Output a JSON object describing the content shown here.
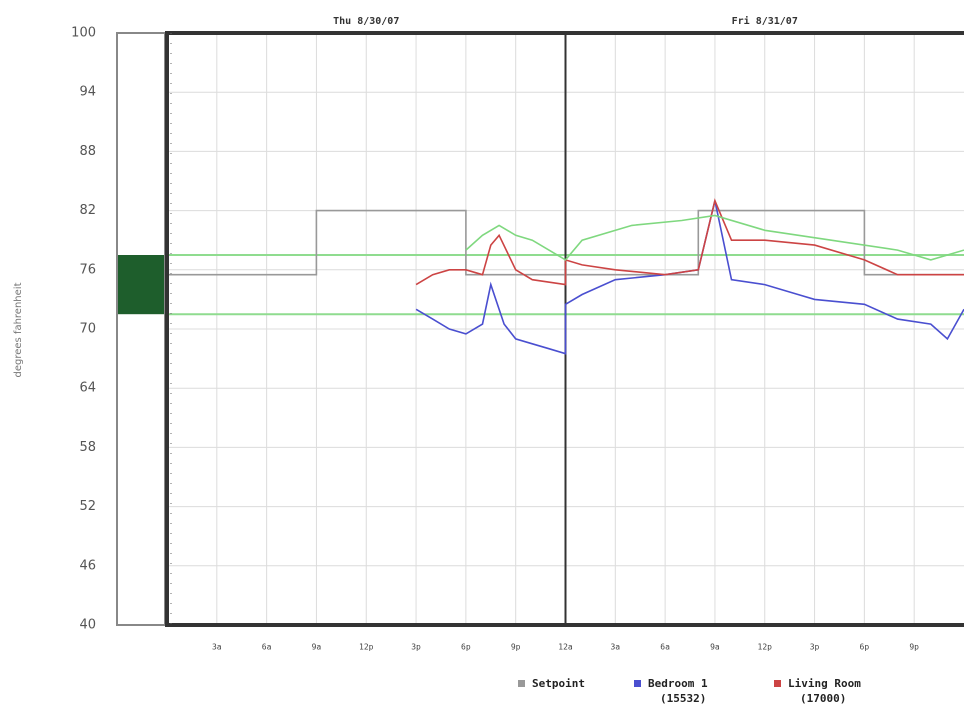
{
  "chart_data": {
    "type": "line",
    "ylabel": "degrees fahrenheit",
    "days": [
      "Thu 8/30/07",
      "Fri 8/31/07"
    ],
    "day_length": 24,
    "xlim": [
      0,
      48
    ],
    "xticks": [
      {
        "value": 3,
        "label": "3a"
      },
      {
        "value": 6,
        "label": "6a"
      },
      {
        "value": 9,
        "label": "9a"
      },
      {
        "value": 12,
        "label": "12p"
      },
      {
        "value": 15,
        "label": "3p"
      },
      {
        "value": 18,
        "label": "6p"
      },
      {
        "value": 21,
        "label": "9p"
      },
      {
        "value": 24,
        "label": "12a"
      },
      {
        "value": 27,
        "label": "3a"
      },
      {
        "value": 30,
        "label": "6a"
      },
      {
        "value": 33,
        "label": "9a"
      },
      {
        "value": 36,
        "label": "12p"
      },
      {
        "value": 39,
        "label": "3p"
      },
      {
        "value": 42,
        "label": "6p"
      },
      {
        "value": 45,
        "label": "9p"
      }
    ],
    "ylim": [
      40,
      100
    ],
    "yticks": [
      40,
      46,
      52,
      58,
      64,
      70,
      76,
      82,
      88,
      94,
      100
    ],
    "grid": true,
    "comfort_band": [
      71.5,
      77.5
    ],
    "band_color": "#1e5e2c",
    "band_line_color": "#8fdc8f",
    "legend": "bottom-right",
    "series": [
      {
        "name": "Setpoint",
        "color": "#999999",
        "x": [
          0,
          9,
          9,
          18,
          18,
          32,
          32,
          42,
          42,
          48
        ],
        "values": [
          75.5,
          75.5,
          82,
          82,
          75.5,
          75.5,
          82,
          82,
          75.5,
          75.5
        ]
      },
      {
        "name": "Bedroom 1",
        "sublabel": "(15532)",
        "color": "#4a4fd0",
        "x": [
          15,
          16,
          17,
          18,
          19,
          19.5,
          20.3,
          21,
          22,
          23,
          24,
          24,
          25,
          27,
          30,
          32,
          33,
          34,
          36,
          38,
          39,
          42,
          44,
          46,
          47,
          48
        ],
        "values": [
          72,
          71,
          70,
          69.5,
          70.5,
          74.5,
          70.5,
          69,
          68.5,
          68,
          67.5,
          72.5,
          73.5,
          75,
          75.5,
          76,
          83,
          75,
          74.5,
          73.5,
          73,
          72.5,
          71,
          70.5,
          69,
          72
        ]
      },
      {
        "name": "Living Room",
        "sublabel": "(17000)",
        "color": "#cc4444",
        "x": [
          15,
          16,
          17,
          18,
          19,
          19.5,
          20,
          21,
          22,
          24,
          24,
          25,
          27,
          30,
          32,
          33,
          34,
          36,
          39,
          42,
          44,
          48
        ],
        "values": [
          74.5,
          75.5,
          76,
          76,
          75.5,
          78.5,
          79.5,
          76,
          75,
          74.5,
          77,
          76.5,
          76,
          75.5,
          76,
          83,
          79,
          79,
          78.5,
          77,
          75.5,
          75.5
        ]
      },
      {
        "color": "#7fd87f",
        "x": [
          18,
          19,
          20,
          21,
          22,
          24,
          25,
          28,
          31,
          33,
          36,
          40,
          44,
          46,
          48
        ],
        "values": [
          78,
          79.5,
          80.5,
          79.5,
          79,
          77,
          79,
          80.5,
          81,
          81.5,
          80,
          79,
          78,
          77,
          78
        ]
      }
    ]
  }
}
